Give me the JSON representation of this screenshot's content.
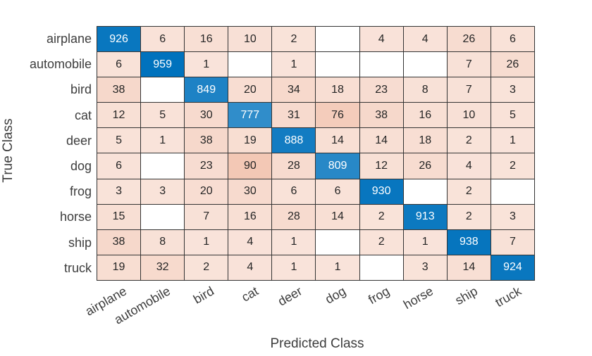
{
  "chart_data": {
    "type": "heatmap",
    "subtype": "confusion-matrix",
    "title": "",
    "xlabel": "Predicted Class",
    "ylabel": "True Class",
    "classes": [
      "airplane",
      "automobile",
      "bird",
      "cat",
      "deer",
      "dog",
      "frog",
      "horse",
      "ship",
      "truck"
    ],
    "matrix": [
      [
        926,
        6,
        16,
        10,
        2,
        0,
        4,
        4,
        26,
        6
      ],
      [
        6,
        959,
        1,
        0,
        1,
        0,
        0,
        0,
        7,
        26
      ],
      [
        38,
        0,
        849,
        20,
        34,
        18,
        23,
        8,
        7,
        3
      ],
      [
        12,
        5,
        30,
        777,
        31,
        76,
        38,
        16,
        10,
        5
      ],
      [
        5,
        1,
        38,
        19,
        888,
        14,
        14,
        18,
        2,
        1
      ],
      [
        6,
        0,
        23,
        90,
        28,
        809,
        12,
        26,
        4,
        2
      ],
      [
        3,
        3,
        20,
        30,
        6,
        6,
        930,
        0,
        2,
        0
      ],
      [
        15,
        0,
        7,
        16,
        28,
        14,
        2,
        913,
        2,
        3
      ],
      [
        38,
        8,
        1,
        4,
        1,
        0,
        2,
        1,
        938,
        7
      ],
      [
        19,
        32,
        2,
        4,
        1,
        1,
        0,
        3,
        14,
        924
      ]
    ],
    "zero_cells_blank": true,
    "grid_on": true,
    "legend": "none",
    "colors": {
      "diagonal_base": "#0072BD",
      "offdiagonal_base": "#D95319",
      "zero_cell": "#FFFFFF",
      "diagonal_text": "#FFFFFF",
      "offdiagonal_text": "#252525",
      "grid_line": "#333333",
      "label_color": "#3D3D3D"
    }
  }
}
